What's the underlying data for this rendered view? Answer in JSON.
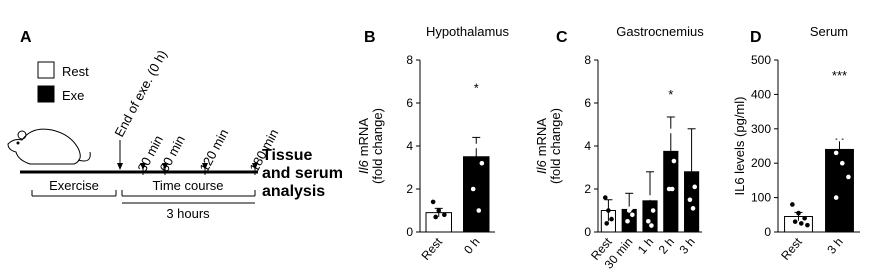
{
  "panel_a": {
    "letter": "A",
    "legend": [
      "Rest",
      "Exe"
    ],
    "arrows": [
      "End of exe. (0 h)",
      "30 min",
      "60 min",
      "120 min",
      "180 min"
    ],
    "endpoint": [
      "Tissue",
      "and serum",
      "analysis"
    ],
    "phases": [
      "Exercise",
      "Time course"
    ],
    "duration": "3 hours"
  },
  "chart_data": [
    {
      "type": "bar",
      "letter": "B",
      "title": "Hypothalamus",
      "ylabel_italic": "Il6",
      "ylabel": "mRNA",
      "ylabel_2": "(fold change)",
      "categories": [
        "Rest",
        "0 h"
      ],
      "values": [
        0.9,
        3.5
      ],
      "errors": [
        0.2,
        0.9
      ],
      "colors": [
        "#ffffff",
        "#000000"
      ],
      "points": [
        [
          1.4,
          1.0,
          0.8,
          0.7
        ],
        [
          6.3,
          4.0,
          3.2,
          2.0,
          1.0
        ]
      ],
      "significance": [
        null,
        "*"
      ],
      "ylim": [
        0,
        8
      ],
      "yticks": [
        0,
        2,
        4,
        6,
        8
      ]
    },
    {
      "type": "bar",
      "letter": "C",
      "title": "Gastrocnemius",
      "ylabel_italic": "Il6",
      "ylabel": "mRNA",
      "ylabel_2": "(fold change)",
      "categories": [
        "Rest",
        "30 min",
        "1 h",
        "2 h",
        "3 h"
      ],
      "values": [
        1.0,
        1.05,
        1.45,
        3.75,
        2.8
      ],
      "errors": [
        0.5,
        0.75,
        1.35,
        1.6,
        2.0
      ],
      "colors": [
        "#ffffff",
        "#000000",
        "#000000",
        "#000000",
        "#000000"
      ],
      "points": [
        [
          1.6,
          1.0,
          0.6,
          0.4
        ],
        [
          1.4,
          1.0,
          0.8,
          0.5,
          1.1
        ],
        [
          2.1,
          1.6,
          1.0,
          0.5,
          0.3
        ],
        [
          6.0,
          4.7,
          3.3,
          2.0,
          2.0
        ],
        [
          6.3,
          5.0,
          2.1,
          1.5,
          1.1
        ]
      ],
      "significance": [
        null,
        null,
        null,
        "*",
        null
      ],
      "ylim": [
        0,
        8
      ],
      "yticks": [
        0,
        2,
        4,
        6,
        8
      ]
    },
    {
      "type": "bar",
      "letter": "D",
      "title": "Serum",
      "ylabel": "IL6 levels (pg/ml)",
      "categories": [
        "Rest",
        "3 h"
      ],
      "values": [
        45,
        240
      ],
      "errors": [
        12,
        30
      ],
      "colors": [
        "#ffffff",
        "#000000"
      ],
      "points": [
        [
          80,
          55,
          40,
          30,
          25,
          20
        ],
        [
          430,
          270,
          250,
          230,
          200,
          160,
          100
        ]
      ],
      "significance": [
        null,
        "***"
      ],
      "ylim": [
        0,
        500
      ],
      "yticks": [
        0,
        100,
        200,
        300,
        400,
        500
      ]
    }
  ]
}
